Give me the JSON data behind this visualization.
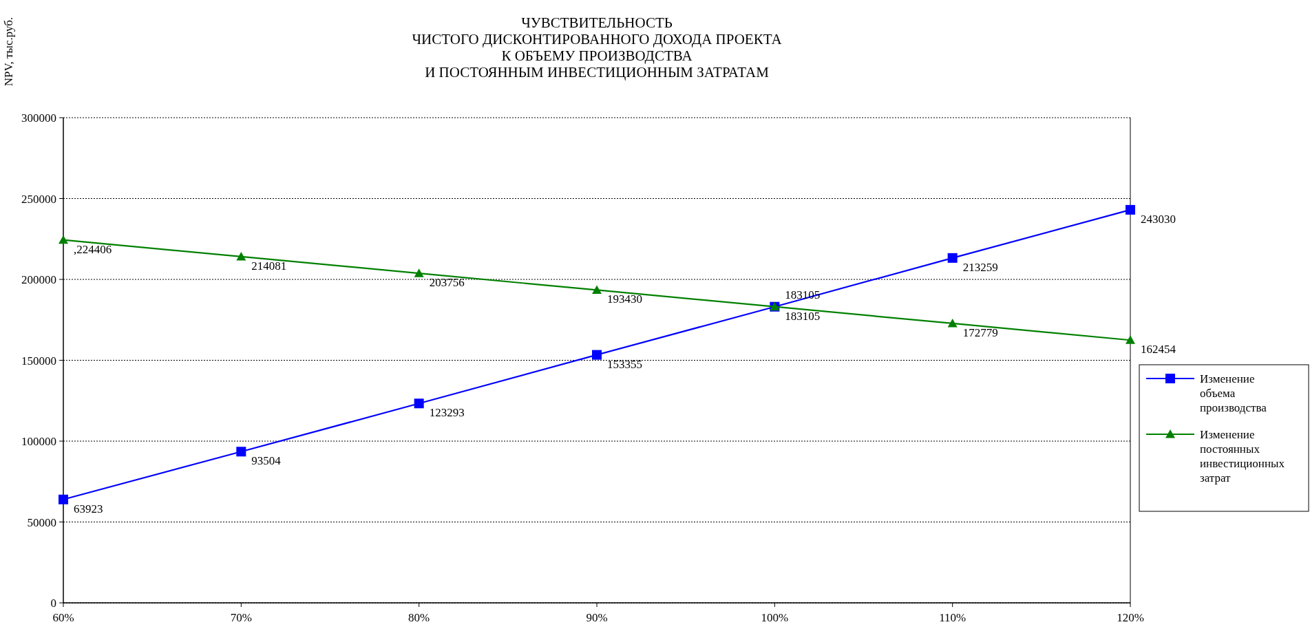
{
  "chart_data": {
    "type": "line",
    "title": "ЧУВСТВИТЕЛЬНОСТЬ\nЧИСТОГО ДИСКОНТИРОВАННОГО ДОХОДА ПРОЕКТА\nК ОБЪЕМУ ПРОИЗВОДСТВА\nИ ПОСТОЯННЫМ ИНВЕСТИЦИОННЫМ ЗАТРАТАМ",
    "ylabel": "NPV, тыс.руб.",
    "categories": [
      "60%",
      "70%",
      "80%",
      "90%",
      "100%",
      "110%",
      "120%"
    ],
    "series": [
      {
        "name": "Изменение объема производства",
        "color": "#0000ff",
        "marker": "square",
        "values": [
          63923,
          93504,
          123293,
          153355,
          183105,
          213259,
          243030
        ],
        "value_labels": [
          "63923",
          "93504",
          "123293",
          "153355",
          "183105",
          "213259",
          "243030"
        ]
      },
      {
        "name": "Изменение постоянных инвестиционных затрат",
        "color": "#008000",
        "marker": "triangle",
        "values": [
          224406,
          214081,
          203756,
          193430,
          183105,
          172779,
          162454
        ],
        "value_labels": [
          ",224406",
          "214081",
          "203756",
          "193430",
          "183105",
          "172779",
          "162454"
        ]
      }
    ],
    "ylim": [
      0,
      300000
    ],
    "yticks": [
      0,
      50000,
      100000,
      150000,
      200000,
      250000,
      300000
    ],
    "grid": "y",
    "legend": "right",
    "line_style": "solid"
  }
}
